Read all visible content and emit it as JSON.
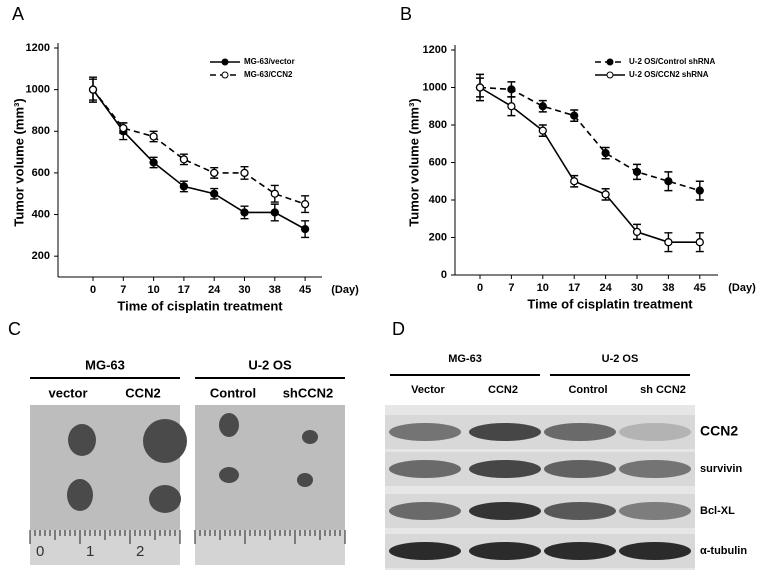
{
  "chart_data": [
    {
      "type": "line",
      "panel_label": "A",
      "x_label": "Time of cisplatin treatment",
      "x_unit_label": "(Day)",
      "y_label": "Tumor volume (mm³)",
      "categories": [
        "0",
        "7",
        "10",
        "17",
        "24",
        "30",
        "38",
        "45"
      ],
      "ylim": [
        100,
        1200
      ],
      "yticks": [
        200,
        400,
        600,
        800,
        1000,
        1200
      ],
      "legend": "upper right",
      "series": [
        {
          "name": "MG-63/vector",
          "color": "#000000",
          "line_style": "solid",
          "marker": "filled",
          "values": [
            1000,
            800,
            650,
            535,
            500,
            410,
            410,
            330
          ],
          "errors": [
            50,
            40,
            25,
            25,
            25,
            30,
            40,
            40
          ]
        },
        {
          "name": "MG-63/CCN2",
          "color": "#000000",
          "line_style": "dashed",
          "marker": "open",
          "values": [
            1000,
            815,
            775,
            665,
            600,
            600,
            500,
            450
          ],
          "errors": [
            60,
            25,
            25,
            25,
            25,
            30,
            40,
            40
          ]
        }
      ]
    },
    {
      "type": "line",
      "panel_label": "B",
      "x_label": "Time of cisplatin treatment",
      "x_unit_label": "(Day)",
      "y_label": "Tumor volume (mm³)",
      "categories": [
        "0",
        "7",
        "10",
        "17",
        "24",
        "30",
        "38",
        "45"
      ],
      "ylim": [
        0,
        1200
      ],
      "yticks": [
        0,
        200,
        400,
        600,
        800,
        1000,
        1200
      ],
      "legend": "upper right",
      "series": [
        {
          "name": "U-2 OS/Control shRNA",
          "color": "#000000",
          "line_style": "dashed",
          "marker": "filled",
          "values": [
            1000,
            990,
            900,
            850,
            650,
            550,
            500,
            450
          ],
          "errors": [
            70,
            40,
            30,
            30,
            30,
            40,
            50,
            50
          ]
        },
        {
          "name": "U-2 OS/CCN2 shRNA",
          "color": "#000000",
          "line_style": "solid",
          "marker": "open",
          "values": [
            1000,
            900,
            770,
            500,
            430,
            230,
            175,
            175
          ],
          "errors": [
            50,
            50,
            30,
            30,
            30,
            40,
            50,
            50
          ]
        }
      ]
    }
  ],
  "panel_c": {
    "label": "C",
    "groups": [
      {
        "title": "MG-63",
        "columns": [
          "vector",
          "CCN2"
        ]
      },
      {
        "title": "U-2 OS",
        "columns": [
          "Control",
          "shCCN2"
        ]
      }
    ],
    "ruler": [
      "0",
      "1",
      "2"
    ]
  },
  "panel_d": {
    "label": "D",
    "groups": [
      {
        "title": "MG-63",
        "columns": [
          "Vector",
          "CCN2"
        ]
      },
      {
        "title": "U-2 OS",
        "columns": [
          "Control",
          "sh CCN2"
        ]
      }
    ],
    "rows": [
      "CCN2",
      "survivin",
      "Bcl-XL",
      "α-tubulin"
    ]
  }
}
